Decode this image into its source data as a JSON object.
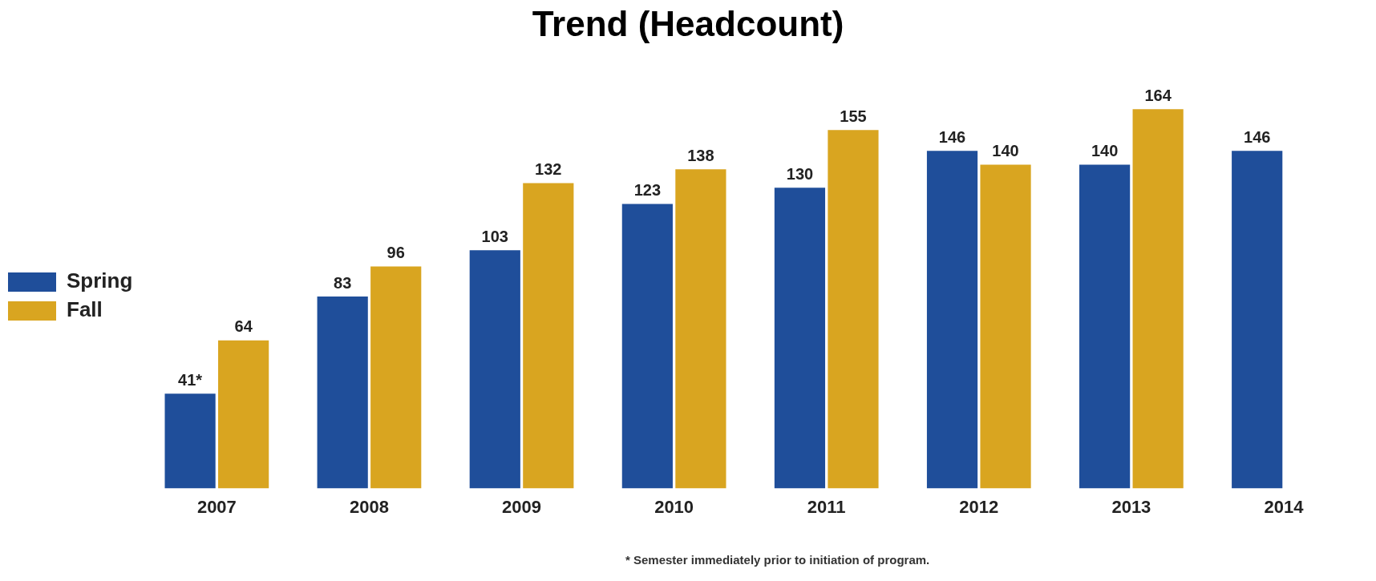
{
  "chart_data": {
    "type": "bar",
    "title": "Trend (Headcount)",
    "categories": [
      "2007",
      "2008",
      "2009",
      "2010",
      "2011",
      "2012",
      "2013",
      "2014"
    ],
    "series": [
      {
        "name": "Spring",
        "color": "#1f4e9a",
        "values": [
          41,
          83,
          103,
          123,
          130,
          146,
          140,
          146
        ],
        "value_labels": [
          "41*",
          "83",
          "103",
          "123",
          "130",
          "146",
          "140",
          "146"
        ]
      },
      {
        "name": "Fall",
        "color": "#d9a520",
        "values": [
          64,
          96,
          132,
          138,
          155,
          140,
          164,
          null
        ],
        "value_labels": [
          "64",
          "96",
          "132",
          "138",
          "155",
          "140",
          "164",
          null
        ]
      }
    ],
    "annotations": [
      "* Semester immediately prior to initiation of program."
    ],
    "legend": "left",
    "grid": false
  }
}
